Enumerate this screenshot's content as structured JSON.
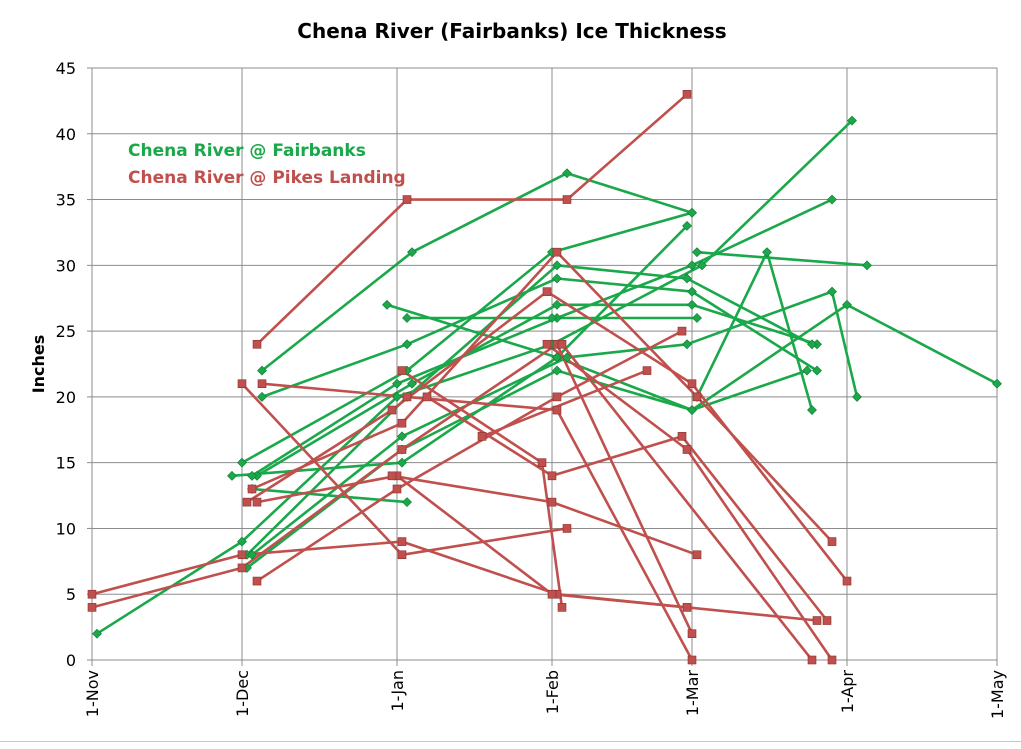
{
  "chart_data": {
    "type": "line",
    "title": "Chena River (Fairbanks) Ice Thickness",
    "xlabel": "",
    "ylabel": "Inches",
    "x_unit": "days since 1-Nov",
    "xlim": [
      0,
      181
    ],
    "ylim": [
      0,
      45
    ],
    "y_ticks": [
      0,
      5,
      10,
      15,
      20,
      25,
      30,
      35,
      40,
      45
    ],
    "x_ticks": [
      {
        "label": "1-Nov",
        "value": 0
      },
      {
        "label": "1-Dec",
        "value": 30
      },
      {
        "label": "1-Jan",
        "value": 61
      },
      {
        "label": "1-Feb",
        "value": 92
      },
      {
        "label": "1-Mar",
        "value": 120
      },
      {
        "label": "1-Apr",
        "value": 151
      },
      {
        "label": "1-May",
        "value": 181
      }
    ],
    "grid": true,
    "legend": [
      {
        "name": "Chena River @ Fairbanks",
        "color": "#1aa84a",
        "position": "top-left"
      },
      {
        "name": "Chena River @ Pikes Landing",
        "color": "#c0504d",
        "position": "top-left"
      }
    ],
    "series": [
      {
        "group": "Chena River @ Fairbanks",
        "color": "#1aa84a",
        "marker": "diamond",
        "points": [
          [
            1,
            2
          ],
          [
            30,
            9
          ],
          [
            61,
            20
          ],
          [
            92,
            24
          ],
          [
            122,
            30
          ],
          [
            152,
            41
          ]
        ]
      },
      {
        "group": "Chena River @ Fairbanks",
        "color": "#1aa84a",
        "marker": "diamond",
        "points": [
          [
            30,
            15
          ],
          [
            63,
            22
          ],
          [
            92,
            31
          ],
          [
            120,
            34
          ]
        ]
      },
      {
        "group": "Chena River @ Fairbanks",
        "color": "#1aa84a",
        "marker": "diamond",
        "points": [
          [
            33,
            14
          ],
          [
            64,
            21
          ],
          [
            93,
            27
          ],
          [
            120,
            27
          ],
          [
            145,
            24
          ]
        ]
      },
      {
        "group": "Chena River @ Fairbanks",
        "color": "#1aa84a",
        "marker": "diamond",
        "points": [
          [
            34,
            22
          ],
          [
            64,
            31
          ],
          [
            95,
            37
          ],
          [
            120,
            34
          ]
        ]
      },
      {
        "group": "Chena River @ Fairbanks",
        "color": "#1aa84a",
        "marker": "diamond",
        "points": [
          [
            34,
            20
          ],
          [
            63,
            24
          ],
          [
            93,
            29
          ],
          [
            120,
            28
          ],
          [
            145,
            22
          ]
        ]
      },
      {
        "group": "Chena River @ Fairbanks",
        "color": "#1aa84a",
        "marker": "diamond",
        "points": [
          [
            32,
            14
          ],
          [
            61,
            21
          ],
          [
            93,
            26
          ],
          [
            120,
            30
          ],
          [
            148,
            35
          ]
        ]
      },
      {
        "group": "Chena River @ Fairbanks",
        "color": "#1aa84a",
        "marker": "diamond",
        "points": [
          [
            32,
            13
          ],
          [
            63,
            12
          ]
        ]
      },
      {
        "group": "Chena River @ Fairbanks",
        "color": "#1aa84a",
        "marker": "diamond",
        "points": [
          [
            31,
            8
          ],
          [
            63,
            20
          ],
          [
            93,
            30
          ],
          [
            119,
            29
          ],
          [
            144,
            24
          ]
        ]
      },
      {
        "group": "Chena River @ Fairbanks",
        "color": "#1aa84a",
        "marker": "diamond",
        "points": [
          [
            32,
            8
          ],
          [
            62,
            17
          ],
          [
            95,
            23
          ],
          [
            119,
            24
          ],
          [
            148,
            28
          ],
          [
            153,
            20
          ]
        ]
      },
      {
        "group": "Chena River @ Fairbanks",
        "color": "#1aa84a",
        "marker": "diamond",
        "points": [
          [
            31,
            7
          ],
          [
            62,
            16
          ],
          [
            93,
            22
          ],
          [
            120,
            19
          ],
          [
            143,
            22
          ]
        ]
      },
      {
        "group": "Chena River @ Fairbanks",
        "color": "#1aa84a",
        "marker": "diamond",
        "points": [
          [
            28,
            14
          ],
          [
            62,
            15
          ],
          [
            93,
            23
          ],
          [
            119,
            33
          ]
        ]
      },
      {
        "group": "Chena River @ Fairbanks",
        "color": "#1aa84a",
        "marker": "diamond",
        "points": [
          [
            59,
            27
          ],
          [
            93,
            23
          ],
          [
            120,
            19
          ],
          [
            151,
            27
          ],
          [
            181,
            21
          ]
        ]
      },
      {
        "group": "Chena River @ Fairbanks",
        "color": "#1aa84a",
        "marker": "diamond",
        "points": [
          [
            63,
            26
          ],
          [
            92,
            26
          ],
          [
            121,
            26
          ]
        ]
      },
      {
        "group": "Chena River @ Fairbanks",
        "color": "#1aa84a",
        "marker": "diamond",
        "points": [
          [
            121,
            20
          ],
          [
            135,
            31
          ],
          [
            144,
            19
          ]
        ]
      },
      {
        "group": "Chena River @ Fairbanks",
        "color": "#1aa84a",
        "marker": "diamond",
        "points": [
          [
            121,
            31
          ],
          [
            155,
            30
          ]
        ]
      },
      {
        "group": "Chena River @ Pikes Landing",
        "color": "#c0504d",
        "marker": "square",
        "points": [
          [
            33,
            24
          ],
          [
            63,
            35
          ],
          [
            95,
            35
          ],
          [
            119,
            43
          ]
        ]
      },
      {
        "group": "Chena River @ Pikes Landing",
        "color": "#c0504d",
        "marker": "square",
        "points": [
          [
            30,
            21
          ],
          [
            62,
            8
          ],
          [
            95,
            10
          ]
        ]
      },
      {
        "group": "Chena River @ Pikes Landing",
        "color": "#c0504d",
        "marker": "square",
        "points": [
          [
            34,
            21
          ],
          [
            63,
            20
          ],
          [
            93,
            19
          ],
          [
            120,
            0
          ]
        ]
      },
      {
        "group": "Chena River @ Pikes Landing",
        "color": "#c0504d",
        "marker": "square",
        "points": [
          [
            0,
            5
          ],
          [
            30,
            8
          ],
          [
            62,
            9
          ],
          [
            93,
            5
          ],
          [
            145,
            3
          ]
        ]
      },
      {
        "group": "Chena River @ Pikes Landing",
        "color": "#c0504d",
        "marker": "square",
        "points": [
          [
            0,
            4
          ],
          [
            30,
            7
          ],
          [
            62,
            16
          ],
          [
            93,
            24
          ],
          [
            120,
            2
          ]
        ]
      },
      {
        "group": "Chena River @ Pikes Landing",
        "color": "#c0504d",
        "marker": "square",
        "points": [
          [
            33,
            6
          ],
          [
            61,
            13
          ],
          [
            93,
            20
          ],
          [
            118,
            25
          ]
        ]
      },
      {
        "group": "Chena River @ Pikes Landing",
        "color": "#c0504d",
        "marker": "square",
        "points": [
          [
            33,
            12
          ],
          [
            61,
            14
          ],
          [
            92,
            5
          ],
          [
            119,
            4
          ]
        ]
      },
      {
        "group": "Chena River @ Pikes Landing",
        "color": "#c0504d",
        "marker": "square",
        "points": [
          [
            32,
            13
          ],
          [
            62,
            18
          ],
          [
            93,
            31
          ],
          [
            121,
            20
          ],
          [
            148,
            9
          ]
        ]
      },
      {
        "group": "Chena River @ Pikes Landing",
        "color": "#c0504d",
        "marker": "square",
        "points": [
          [
            31,
            12
          ],
          [
            60,
            19
          ],
          [
            91,
            28
          ],
          [
            120,
            21
          ],
          [
            151,
            6
          ]
        ]
      },
      {
        "group": "Chena River @ Pikes Landing",
        "color": "#c0504d",
        "marker": "square",
        "points": [
          [
            60,
            14
          ],
          [
            92,
            12
          ],
          [
            121,
            8
          ]
        ]
      },
      {
        "group": "Chena River @ Pikes Landing",
        "color": "#c0504d",
        "marker": "square",
        "points": [
          [
            62,
            22
          ],
          [
            90,
            15
          ],
          [
            94,
            4
          ]
        ]
      },
      {
        "group": "Chena River @ Pikes Landing",
        "color": "#c0504d",
        "marker": "square",
        "points": [
          [
            67,
            20
          ],
          [
            92,
            14
          ],
          [
            118,
            17
          ],
          [
            147,
            3
          ]
        ]
      },
      {
        "group": "Chena River @ Pikes Landing",
        "color": "#c0504d",
        "marker": "square",
        "points": [
          [
            91,
            24
          ],
          [
            119,
            16
          ],
          [
            148,
            0
          ]
        ]
      },
      {
        "group": "Chena River @ Pikes Landing",
        "color": "#c0504d",
        "marker": "square",
        "points": [
          [
            78,
            17
          ],
          [
            111,
            22
          ]
        ]
      },
      {
        "group": "Chena River @ Pikes Landing",
        "color": "#c0504d",
        "marker": "square",
        "points": [
          [
            94,
            24
          ],
          [
            144,
            0
          ]
        ]
      }
    ]
  }
}
